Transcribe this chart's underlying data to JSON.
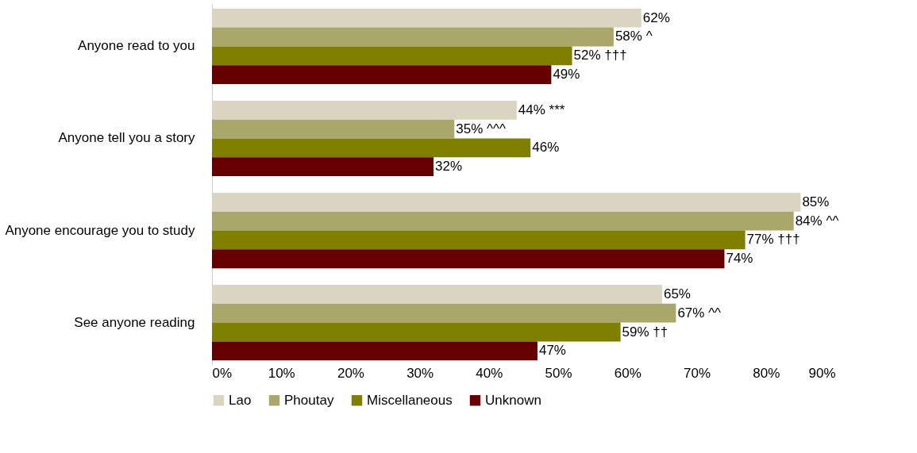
{
  "chart_data": {
    "type": "bar",
    "orientation": "horizontal",
    "categories": [
      "Anyone read to you",
      "Anyone tell you a story",
      "Anyone encourage you to study",
      "See anyone reading"
    ],
    "series": [
      {
        "name": "Lao",
        "color": "#d9d5c0",
        "values": [
          62,
          44,
          85,
          65
        ],
        "value_labels": [
          "62%",
          "44% ***",
          "85%",
          "65%"
        ]
      },
      {
        "name": "Phoutay",
        "color": "#a9a86a",
        "values": [
          58,
          35,
          84,
          67
        ],
        "value_labels": [
          "58% ^",
          "35% ^^^",
          "84% ^^",
          "67% ^^"
        ]
      },
      {
        "name": "Miscellaneous",
        "color": "#7f7f00",
        "values": [
          52,
          46,
          77,
          59
        ],
        "value_labels": [
          "52% †††",
          "46%",
          "77% †††",
          "59% ††"
        ]
      },
      {
        "name": "Unknown",
        "color": "#660000",
        "values": [
          49,
          32,
          74,
          47
        ],
        "value_labels": [
          "49%",
          "32%",
          "74%",
          "47%"
        ]
      }
    ],
    "xlim": [
      0,
      90
    ],
    "xticks": [
      {
        "value": 0,
        "label": "0%"
      },
      {
        "value": 10,
        "label": "10%"
      },
      {
        "value": 20,
        "label": "20%"
      },
      {
        "value": 30,
        "label": "30%"
      },
      {
        "value": 40,
        "label": "40%"
      },
      {
        "value": 50,
        "label": "50%"
      },
      {
        "value": 60,
        "label": "60%"
      },
      {
        "value": 70,
        "label": "70%"
      },
      {
        "value": 80,
        "label": "80%"
      },
      {
        "value": 90,
        "label": "90%"
      }
    ],
    "grid": false,
    "legend": "bottom"
  }
}
